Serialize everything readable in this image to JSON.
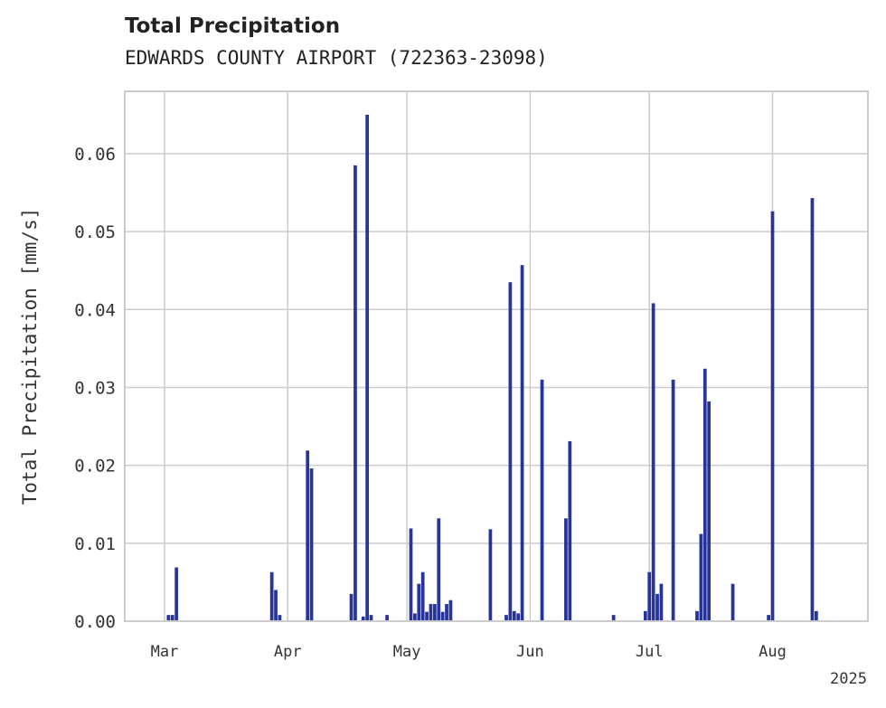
{
  "chart_data": {
    "type": "bar",
    "title": "Total Precipitation",
    "subtitle": "EDWARDS COUNTY AIRPORT (722363-23098)",
    "xlabel": "",
    "ylabel": "Total Precipitation [mm/s]",
    "ylim": [
      0,
      0.068
    ],
    "xlim": [
      "2025-02-19",
      "2025-08-25"
    ],
    "yticks": [
      "0.00",
      "0.01",
      "0.02",
      "0.03",
      "0.04",
      "0.05",
      "0.06"
    ],
    "xticks": [
      {
        "date": "2025-03-01",
        "label": "Mar"
      },
      {
        "date": "2025-04-01",
        "label": "Apr"
      },
      {
        "date": "2025-05-01",
        "label": "May"
      },
      {
        "date": "2025-06-01",
        "label": "Jun"
      },
      {
        "date": "2025-07-01",
        "label": "Jul"
      },
      {
        "date": "2025-08-01",
        "label": "Aug"
      }
    ],
    "year_label": "2025",
    "grid": true,
    "color": "#27349a",
    "x": [
      "2025-03-02",
      "2025-03-03",
      "2025-03-04",
      "2025-03-28",
      "2025-03-29",
      "2025-03-30",
      "2025-04-06",
      "2025-04-07",
      "2025-04-17",
      "2025-04-18",
      "2025-04-20",
      "2025-04-21",
      "2025-04-22",
      "2025-04-26",
      "2025-05-02",
      "2025-05-03",
      "2025-05-04",
      "2025-05-05",
      "2025-05-06",
      "2025-05-07",
      "2025-05-08",
      "2025-05-09",
      "2025-05-10",
      "2025-05-11",
      "2025-05-12",
      "2025-05-22",
      "2025-05-26",
      "2025-05-27",
      "2025-05-28",
      "2025-05-29",
      "2025-05-30",
      "2025-06-04",
      "2025-06-10",
      "2025-06-11",
      "2025-06-22",
      "2025-06-30",
      "2025-07-01",
      "2025-07-02",
      "2025-07-03",
      "2025-07-04",
      "2025-07-07",
      "2025-07-13",
      "2025-07-14",
      "2025-07-15",
      "2025-07-16",
      "2025-07-22",
      "2025-07-31",
      "2025-08-01",
      "2025-08-11",
      "2025-08-12"
    ],
    "values": [
      0.0008,
      0.0008,
      0.0069,
      0.0063,
      0.004,
      0.0008,
      0.0219,
      0.0196,
      0.0035,
      0.0585,
      0.0006,
      0.065,
      0.0008,
      0.0008,
      0.0119,
      0.001,
      0.0048,
      0.0063,
      0.0012,
      0.0022,
      0.0022,
      0.0132,
      0.0012,
      0.0022,
      0.0027,
      0.0118,
      0.0008,
      0.0435,
      0.0013,
      0.001,
      0.0457,
      0.031,
      0.0132,
      0.0231,
      0.0008,
      0.0013,
      0.0063,
      0.0408,
      0.0035,
      0.0048,
      0.031,
      0.0013,
      0.0112,
      0.0324,
      0.0282,
      0.0048,
      0.0008,
      0.0526,
      0.0543,
      0.0013
    ]
  }
}
